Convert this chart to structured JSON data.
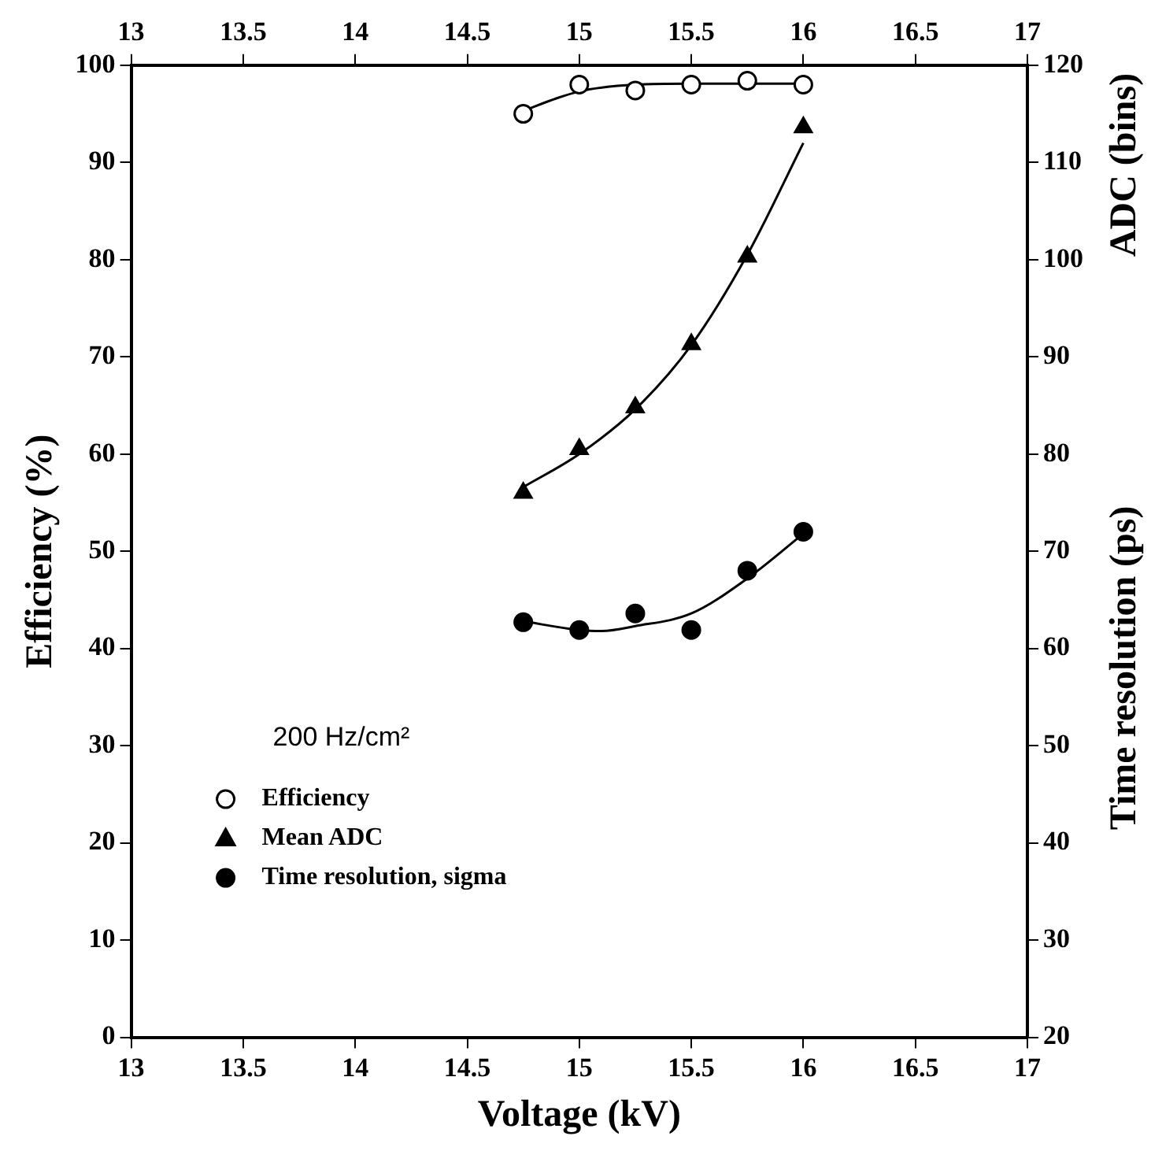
{
  "chart_data": {
    "type": "scatter",
    "xlabel": "Voltage (kV)",
    "ylabel": "Efficiency (%)",
    "y2label": "ADC (bins)",
    "annotations": [
      "200 Hz/cm²",
      "Time resolution (ps)"
    ],
    "xlim": [
      13,
      17
    ],
    "xticks": [
      13,
      13.5,
      14,
      14.5,
      15,
      15.5,
      16,
      16.5,
      17
    ],
    "x2lim": [
      13,
      17
    ],
    "x2ticks": [
      13,
      13.5,
      14,
      14.5,
      15,
      15.5,
      16,
      16.5,
      17
    ],
    "ylim": [
      0,
      100
    ],
    "yticks": [
      0,
      10,
      20,
      30,
      40,
      50,
      60,
      70,
      80,
      90,
      100
    ],
    "y2lim": [
      20,
      120
    ],
    "y2ticks": [
      20,
      30,
      40,
      50,
      60,
      70,
      80,
      90,
      100,
      110,
      120
    ],
    "grid": false,
    "legend": "bottom left",
    "series": [
      {
        "name": "Efficiency",
        "marker": "circle",
        "color": "#ffffff",
        "x": [
          14.75,
          15,
          15.25,
          15.5,
          15.75,
          16
        ],
        "values": [
          95,
          98,
          97.4,
          98,
          98.4,
          98
        ]
      },
      {
        "name": "Mean ADC",
        "marker": "triangle",
        "axis": "y2",
        "color": "#000000",
        "x": [
          14.75,
          15,
          15.25,
          15.5,
          15.75,
          16
        ],
        "values": [
          76,
          80.5,
          84.8,
          91.3,
          100.3,
          113.6
        ]
      },
      {
        "name": "Time resolution, sigma",
        "marker": "circle",
        "axis": "y2",
        "color": "#000000",
        "x": [
          14.75,
          15,
          15.25,
          15.5,
          15.75,
          16
        ],
        "values": [
          62.7,
          61.9,
          63.6,
          61.9,
          68,
          72
        ]
      },
      {
        "type": "line",
        "marker": "none",
        "color": "#000000",
        "x": [
          14.75,
          14.9,
          15,
          15.1,
          15.25,
          15.5,
          15.75,
          16
        ],
        "values": [
          95.3,
          96.6,
          97.3,
          97.7,
          98,
          98.1,
          98.1,
          98.1
        ]
      },
      {
        "type": "line",
        "marker": "none",
        "axis": "y2",
        "color": "#000000",
        "x": [
          14.75,
          15,
          15.25,
          15.5,
          15.75,
          16
        ],
        "values": [
          76.6,
          80,
          84.6,
          91.2,
          100.5,
          112
        ]
      },
      {
        "type": "line",
        "marker": "none",
        "axis": "y2",
        "color": "#000000",
        "x": [
          14.75,
          15,
          15.1,
          15.25,
          15.5,
          15.75,
          16
        ],
        "values": [
          62.8,
          61.9,
          61.8,
          62.3,
          63.6,
          67.2,
          71.8
        ]
      }
    ]
  }
}
